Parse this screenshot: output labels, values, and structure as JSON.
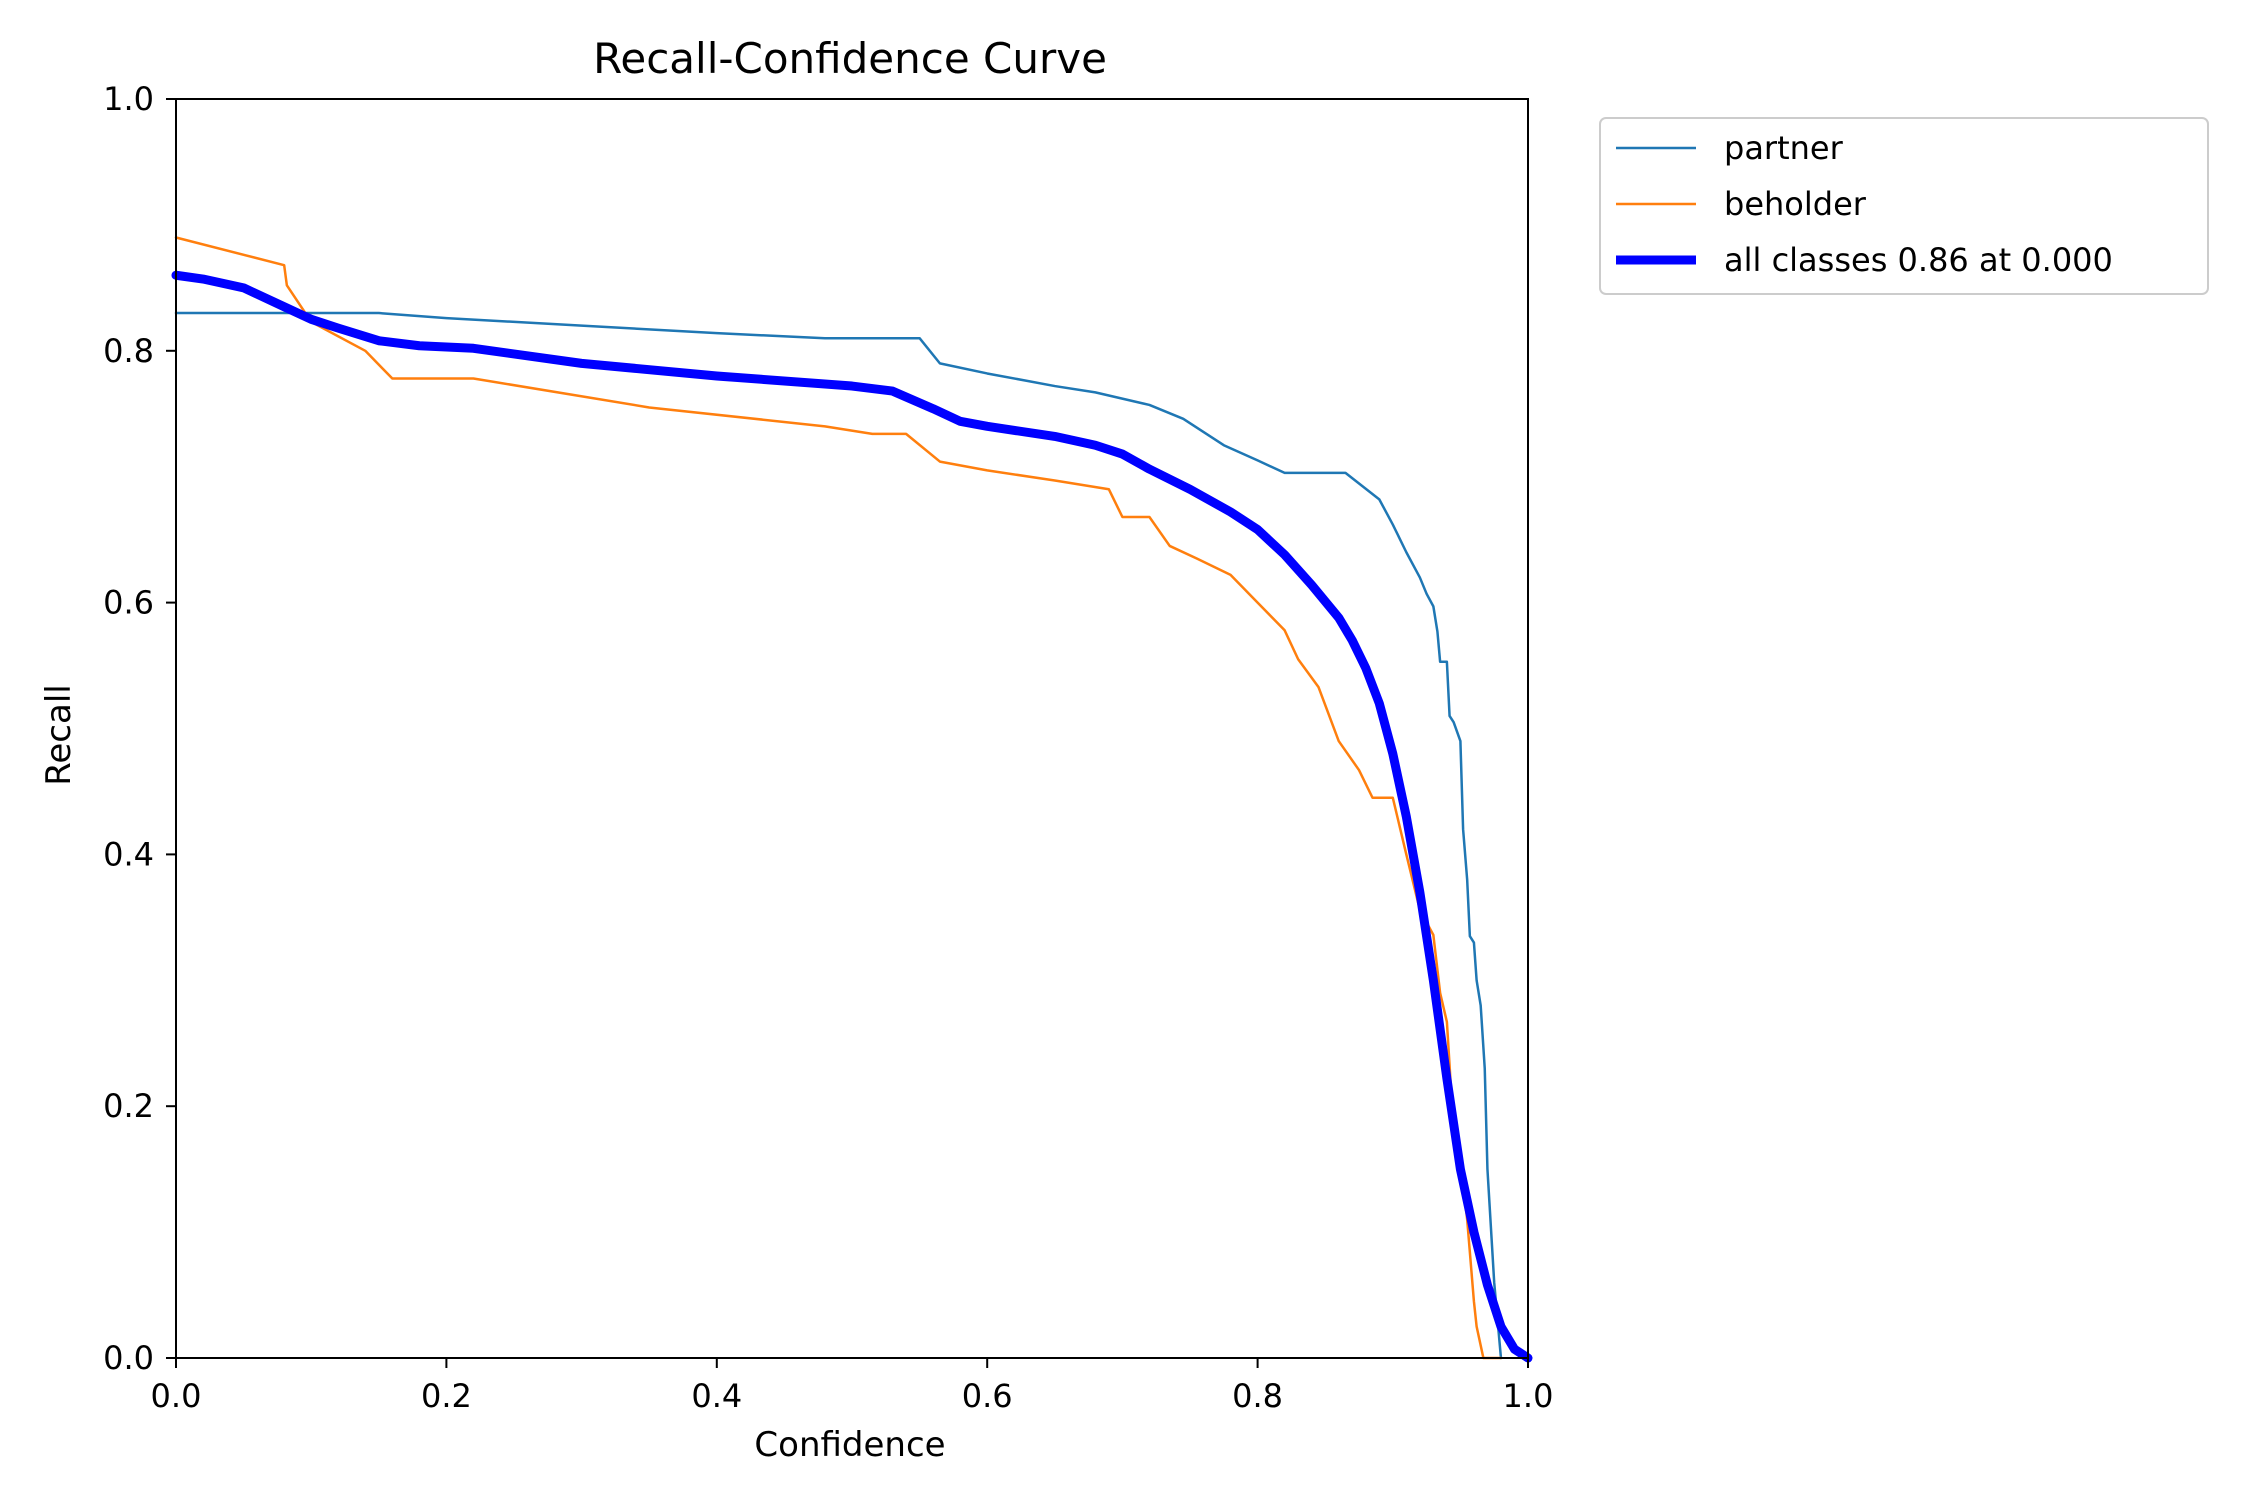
{
  "chart_data": {
    "type": "line",
    "title": "Recall-Confidence Curve",
    "xlabel": "Confidence",
    "ylabel": "Recall",
    "xlim": [
      0,
      1
    ],
    "ylim": [
      0,
      1
    ],
    "xticks": [
      "0.0",
      "0.2",
      "0.4",
      "0.6",
      "0.8",
      "1.0"
    ],
    "yticks": [
      "0.0",
      "0.2",
      "0.4",
      "0.6",
      "0.8",
      "1.0"
    ],
    "grid": false,
    "legend_position": "outside-top-right",
    "series": [
      {
        "name": "partner",
        "color": "#1f77b4",
        "line_width": "thin",
        "x": [
          0.0,
          0.05,
          0.1,
          0.15,
          0.2,
          0.3,
          0.4,
          0.48,
          0.52,
          0.55,
          0.565,
          0.6,
          0.65,
          0.68,
          0.72,
          0.745,
          0.775,
          0.8,
          0.82,
          0.84,
          0.865,
          0.89,
          0.9,
          0.91,
          0.92,
          0.925,
          0.93,
          0.933,
          0.935,
          0.938,
          0.94,
          0.942,
          0.945,
          0.95,
          0.952,
          0.955,
          0.957,
          0.96,
          0.962,
          0.965,
          0.968,
          0.97,
          0.975,
          0.98
        ],
        "y": [
          0.83,
          0.83,
          0.83,
          0.83,
          0.826,
          0.82,
          0.814,
          0.81,
          0.81,
          0.81,
          0.79,
          0.782,
          0.772,
          0.767,
          0.757,
          0.746,
          0.725,
          0.713,
          0.703,
          0.703,
          0.703,
          0.682,
          0.662,
          0.64,
          0.62,
          0.607,
          0.597,
          0.577,
          0.553,
          0.553,
          0.553,
          0.51,
          0.505,
          0.49,
          0.42,
          0.38,
          0.335,
          0.33,
          0.3,
          0.28,
          0.23,
          0.15,
          0.06,
          0.0
        ]
      },
      {
        "name": "beholder",
        "color": "#ff7f0e",
        "line_width": "thin",
        "x": [
          0.0,
          0.08,
          0.082,
          0.1,
          0.14,
          0.16,
          0.22,
          0.35,
          0.48,
          0.515,
          0.54,
          0.565,
          0.6,
          0.65,
          0.69,
          0.7,
          0.72,
          0.735,
          0.755,
          0.78,
          0.8,
          0.82,
          0.83,
          0.845,
          0.86,
          0.875,
          0.885,
          0.9,
          0.91,
          0.92,
          0.93,
          0.935,
          0.94,
          0.945,
          0.95,
          0.955,
          0.96,
          0.962,
          0.967,
          0.975,
          0.98
        ],
        "y": [
          0.89,
          0.868,
          0.852,
          0.823,
          0.8,
          0.778,
          0.778,
          0.755,
          0.74,
          0.734,
          0.734,
          0.712,
          0.705,
          0.697,
          0.69,
          0.668,
          0.668,
          0.645,
          0.635,
          0.622,
          0.6,
          0.578,
          0.555,
          0.533,
          0.49,
          0.467,
          0.445,
          0.445,
          0.4,
          0.356,
          0.336,
          0.29,
          0.267,
          0.18,
          0.155,
          0.11,
          0.045,
          0.025,
          0.0,
          0.0,
          0.0
        ]
      },
      {
        "name": "all classes 0.86 at 0.000",
        "color": "#0000ff",
        "line_width": "thick",
        "x": [
          0.0,
          0.02,
          0.05,
          0.08,
          0.1,
          0.12,
          0.15,
          0.18,
          0.22,
          0.3,
          0.4,
          0.5,
          0.53,
          0.56,
          0.58,
          0.6,
          0.65,
          0.68,
          0.7,
          0.72,
          0.75,
          0.78,
          0.8,
          0.82,
          0.84,
          0.86,
          0.87,
          0.88,
          0.89,
          0.9,
          0.91,
          0.92,
          0.93,
          0.94,
          0.95,
          0.96,
          0.97,
          0.98,
          0.99,
          1.0
        ],
        "y": [
          0.86,
          0.857,
          0.85,
          0.835,
          0.825,
          0.818,
          0.808,
          0.804,
          0.802,
          0.79,
          0.78,
          0.772,
          0.768,
          0.754,
          0.744,
          0.74,
          0.732,
          0.725,
          0.718,
          0.706,
          0.69,
          0.672,
          0.658,
          0.638,
          0.614,
          0.588,
          0.57,
          0.548,
          0.52,
          0.48,
          0.43,
          0.37,
          0.3,
          0.222,
          0.15,
          0.1,
          0.058,
          0.025,
          0.007,
          0.0
        ]
      }
    ]
  }
}
